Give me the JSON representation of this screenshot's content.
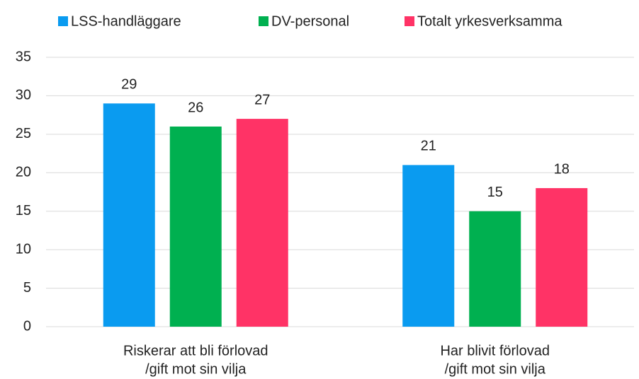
{
  "chart_data": {
    "type": "bar",
    "categories": [
      [
        "Riskerar att bli förlovad",
        "/gift mot sin vilja"
      ],
      [
        "Har blivit förlovad",
        "/gift mot sin vilja"
      ]
    ],
    "series": [
      {
        "name": "LSS-handläggare",
        "color": "#0a9bf0",
        "values": [
          29,
          21
        ]
      },
      {
        "name": "DV-personal",
        "color": "#00b050",
        "values": [
          26,
          15
        ]
      },
      {
        "name": "Totalt yrkesverksamma",
        "color": "#ff3366",
        "values": [
          27,
          18
        ]
      }
    ],
    "ylim": [
      0,
      35
    ],
    "yticks": [
      0,
      5,
      10,
      15,
      20,
      25,
      30,
      35
    ],
    "grid": true,
    "legend": "top"
  }
}
